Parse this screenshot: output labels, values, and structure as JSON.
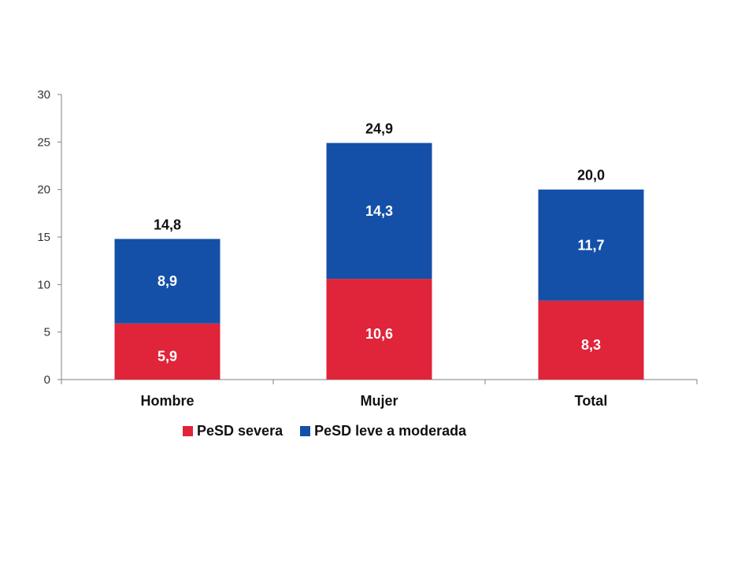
{
  "chart_data": {
    "type": "bar",
    "stacked": true,
    "categories": [
      "Hombre",
      "Mujer",
      "Total"
    ],
    "series": [
      {
        "name": "PeSD severa",
        "color": "#e0243a",
        "values": [
          5.9,
          10.6,
          8.3
        ],
        "labels": [
          "5,9",
          "10,6",
          "8,3"
        ]
      },
      {
        "name": "PeSD leve a moderada",
        "color": "#1550a8",
        "values": [
          8.9,
          14.3,
          11.7
        ],
        "labels": [
          "8,9",
          "14,3",
          "11,7"
        ]
      }
    ],
    "totals": [
      14.8,
      24.9,
      20.0
    ],
    "total_labels": [
      "14,8",
      "24,9",
      "20,0"
    ],
    "ylim": [
      0,
      30
    ],
    "yticks": [
      0,
      5,
      10,
      15,
      20,
      25,
      30
    ],
    "grid": false,
    "legend_position": "bottom",
    "title": "",
    "xlabel": "",
    "ylabel": ""
  }
}
